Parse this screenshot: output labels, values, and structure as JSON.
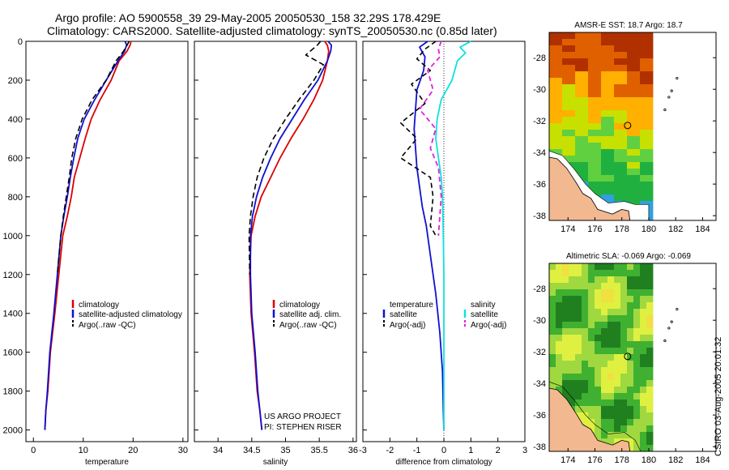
{
  "header": {
    "title_line1": "Argo profile: AO 5900558_39 29-May-2005 20050530_158 32.29S 178.429E",
    "title_line2": "Climatology: CARS2000. Satellite-adjusted climatology: synTS_20050530.nc (0.85d later)"
  },
  "credits": {
    "project": "US ARGO PROJECT",
    "pi": "PI: STEPHEN RISER",
    "side_stamp": "CSIRO 03-Aug-2005 20:01:32"
  },
  "colors": {
    "climatology": "#dd0000",
    "satellite": "#1010d0",
    "argo": "#000000",
    "salinity": "#10e0e0",
    "salinity_argo": "#e020e0",
    "land": "#f2b890"
  },
  "chart_data": [
    {
      "id": "temperature",
      "type": "line",
      "xlabel": "temperature",
      "xlim": [
        -1.5,
        31
      ],
      "ylim": [
        2060,
        0
      ],
      "xticks": [
        "0",
        "10",
        "20",
        "30"
      ],
      "xtick_values": [
        0,
        10,
        20,
        30
      ],
      "yticks": [
        "0",
        "200",
        "400",
        "600",
        "800",
        "1000",
        "1200",
        "1400",
        "1600",
        "1800",
        "2000"
      ],
      "ytick_values": [
        0,
        200,
        400,
        600,
        800,
        1000,
        1200,
        1400,
        1600,
        1800,
        2000
      ],
      "legend": [
        "climatology",
        "satellite-adjusted climatology",
        "Argo(..raw -QC)"
      ],
      "series": [
        {
          "name": "climatology",
          "color": "#dd0000",
          "width": 1.8,
          "dash": "",
          "x": [
            19.6,
            19.4,
            18.8,
            17.2,
            15.6,
            13.4,
            11.6,
            10.4,
            9.3,
            8.2,
            7.6,
            6.8,
            5.9,
            5.1,
            4.3,
            3.4,
            2.9,
            2.5,
            2.3
          ],
          "y": [
            0,
            20,
            50,
            100,
            200,
            300,
            400,
            500,
            600,
            700,
            800,
            900,
            1000,
            1200,
            1400,
            1600,
            1800,
            1900,
            2000
          ]
        },
        {
          "name": "satellite",
          "color": "#1010d0",
          "width": 1.8,
          "dash": "",
          "x": [
            18.4,
            18.7,
            18.3,
            17.0,
            14.6,
            12.3,
            10.2,
            8.9,
            8.1,
            7.4,
            6.8,
            6.1,
            5.5,
            4.8,
            4.1,
            3.3,
            2.8,
            2.5,
            2.3
          ],
          "y": [
            0,
            20,
            50,
            100,
            200,
            300,
            400,
            500,
            600,
            700,
            800,
            900,
            1000,
            1200,
            1400,
            1600,
            1800,
            1900,
            2000
          ]
        },
        {
          "name": "argo",
          "color": "#000000",
          "width": 1.6,
          "dash": "7,4",
          "x": [
            19.2,
            18.8,
            18.1,
            16.6,
            14.6,
            11.8,
            9.8,
            8.5,
            7.7,
            7.2,
            6.6,
            6.0,
            5.5,
            4.8
          ],
          "y": [
            0,
            20,
            50,
            100,
            200,
            300,
            400,
            500,
            600,
            700,
            800,
            900,
            1000,
            1200
          ]
        }
      ]
    },
    {
      "id": "salinity",
      "type": "line",
      "xlabel": "salinity",
      "xlim": [
        33.65,
        36.05
      ],
      "ylim": [
        2060,
        0
      ],
      "xticks": [
        "34",
        "34.5",
        "35",
        "35.5",
        "36"
      ],
      "xtick_values": [
        34,
        34.5,
        35,
        35.5,
        36
      ],
      "yticks": [],
      "ytick_values": [],
      "legend": [
        "climatology",
        "satellite adj. clim.",
        "Argo(..raw -QC)"
      ],
      "series": [
        {
          "name": "climatology",
          "color": "#dd0000",
          "width": 1.8,
          "dash": "",
          "x": [
            35.58,
            35.62,
            35.64,
            35.62,
            35.55,
            35.42,
            35.26,
            35.08,
            34.92,
            34.78,
            34.64,
            34.55,
            34.49,
            34.47,
            34.49,
            34.54,
            34.58,
            34.62,
            34.65
          ],
          "y": [
            0,
            20,
            50,
            100,
            200,
            300,
            400,
            500,
            600,
            700,
            800,
            900,
            1000,
            1200,
            1400,
            1600,
            1800,
            1900,
            2000
          ]
        },
        {
          "name": "satellite",
          "color": "#1010d0",
          "width": 1.8,
          "dash": "",
          "x": [
            35.63,
            35.68,
            35.67,
            35.62,
            35.48,
            35.28,
            35.1,
            34.92,
            34.78,
            34.66,
            34.57,
            34.51,
            34.48,
            34.48,
            34.5,
            34.55,
            34.59,
            34.62,
            34.65
          ],
          "y": [
            0,
            20,
            50,
            100,
            200,
            300,
            400,
            500,
            600,
            700,
            800,
            900,
            1000,
            1200,
            1400,
            1600,
            1800,
            1900,
            2000
          ]
        },
        {
          "name": "argo",
          "color": "#000000",
          "width": 1.6,
          "dash": "7,4",
          "x": [
            35.52,
            35.47,
            35.3,
            35.56,
            35.42,
            35.2,
            35.0,
            34.82,
            34.68,
            34.58,
            34.52,
            34.48,
            34.46,
            34.47
          ],
          "y": [
            0,
            20,
            70,
            120,
            200,
            300,
            400,
            500,
            600,
            700,
            800,
            900,
            1000,
            1200
          ]
        }
      ]
    },
    {
      "id": "difference",
      "type": "line",
      "xlabel": "difference from climatology",
      "xlim": [
        -3,
        3
      ],
      "ylim": [
        2060,
        0
      ],
      "xticks": [
        "-3",
        "-2",
        "-1",
        "0",
        "1",
        "2",
        "3"
      ],
      "xtick_values": [
        -3,
        -2,
        -1,
        0,
        1,
        2,
        3
      ],
      "yticks": [],
      "ytick_values": [],
      "legend": [
        "temperature",
        "satellite",
        "Argo(-adj)",
        "salinity",
        "satellite",
        "Argo(-adj)"
      ],
      "series": [
        {
          "name": "temperature satellite",
          "color": "#1010d0",
          "width": 1.8,
          "dash": "",
          "x": [
            -0.6,
            -0.9,
            -0.7,
            -0.75,
            -1.0,
            -1.05,
            -1.1,
            -1.05,
            -1.0,
            -0.9,
            -0.8,
            -0.65,
            -0.5,
            -0.3,
            -0.15,
            -0.05,
            -0.02,
            0.0
          ],
          "y": [
            0,
            30,
            80,
            150,
            250,
            350,
            450,
            550,
            650,
            750,
            850,
            950,
            1100,
            1300,
            1500,
            1700,
            1900,
            2000
          ]
        },
        {
          "name": "temperature argo",
          "color": "#000000",
          "width": 1.6,
          "dash": "6,4",
          "x": [
            -0.3,
            -0.7,
            -1.0,
            -0.5,
            -1.2,
            -0.7,
            -1.6,
            -1.0,
            -1.6,
            -0.5,
            -0.4,
            -0.5,
            -0.3
          ],
          "y": [
            0,
            40,
            90,
            150,
            220,
            320,
            420,
            500,
            600,
            700,
            800,
            950,
            1000
          ]
        },
        {
          "name": "salinity satellite",
          "color": "#10e0e0",
          "width": 1.8,
          "dash": "",
          "x": [
            1.0,
            0.6,
            0.8,
            0.5,
            0.3,
            -0.1,
            -0.25,
            -0.3,
            -0.2,
            -0.1,
            -0.05,
            -0.02,
            0.0,
            0.0
          ],
          "y": [
            0,
            30,
            60,
            100,
            200,
            300,
            400,
            500,
            600,
            700,
            800,
            1000,
            1200,
            2000
          ]
        },
        {
          "name": "salinity argo",
          "color": "#e020e0",
          "width": 1.8,
          "dash": "6,4",
          "x": [
            -0.1,
            -0.2,
            -0.15,
            -0.6,
            -0.4,
            -0.9,
            -0.3,
            -0.5,
            -0.2,
            -0.1,
            -0.2
          ],
          "y": [
            0,
            40,
            80,
            150,
            250,
            350,
            450,
            550,
            650,
            800,
            1000
          ]
        }
      ]
    }
  ],
  "maps": [
    {
      "id": "sst-map",
      "title": "AMSR-E SST: 18.7 Argo: 18.7",
      "xticks": [
        "174",
        "176",
        "178",
        "180",
        "182",
        "184"
      ],
      "xtick_values": [
        174,
        176,
        178,
        180,
        182,
        184
      ],
      "yticks": [
        "-28",
        "-30",
        "-32",
        "-34",
        "-36",
        "-38"
      ],
      "ytick_values": [
        -28,
        -30,
        -32,
        -34,
        -36,
        -38
      ],
      "xlim": [
        172.6,
        185
      ],
      "ylim": [
        -38.3,
        -26.4
      ],
      "float_position": {
        "lon": 178.429,
        "lat": -32.29
      },
      "islands": [
        {
          "lon": 182.1,
          "lat": -29.3
        },
        {
          "lon": 181.7,
          "lat": -30.1
        },
        {
          "lon": 181.5,
          "lat": -30.5
        },
        {
          "lon": 181.2,
          "lat": -31.3
        }
      ],
      "colorbar": [
        "#b03000",
        "#e06000",
        "#ffb000",
        "#c8e000",
        "#60d040",
        "#20b040",
        "#30a0e0",
        "#0050c0"
      ]
    },
    {
      "id": "sla-map",
      "title": "Altimetric SLA: -0.069 Argo: -0.069",
      "xticks": [
        "174",
        "176",
        "178",
        "180",
        "182",
        "184"
      ],
      "xtick_values": [
        174,
        176,
        178,
        180,
        182,
        184
      ],
      "yticks": [
        "-28",
        "-30",
        "-32",
        "-34",
        "-36",
        "-38"
      ],
      "ytick_values": [
        -28,
        -30,
        -32,
        -34,
        -36,
        -38
      ],
      "xlim": [
        172.6,
        185
      ],
      "ylim": [
        -38.3,
        -26.4
      ],
      "float_position": {
        "lon": 178.429,
        "lat": -32.29
      },
      "islands": [
        {
          "lon": 182.1,
          "lat": -29.3
        },
        {
          "lon": 181.7,
          "lat": -30.1
        },
        {
          "lon": 181.5,
          "lat": -30.5
        },
        {
          "lon": 181.2,
          "lat": -31.3
        }
      ],
      "colorbar": [
        "#208020",
        "#40b030",
        "#a0d840",
        "#e0f040",
        "#f0e040"
      ]
    }
  ]
}
